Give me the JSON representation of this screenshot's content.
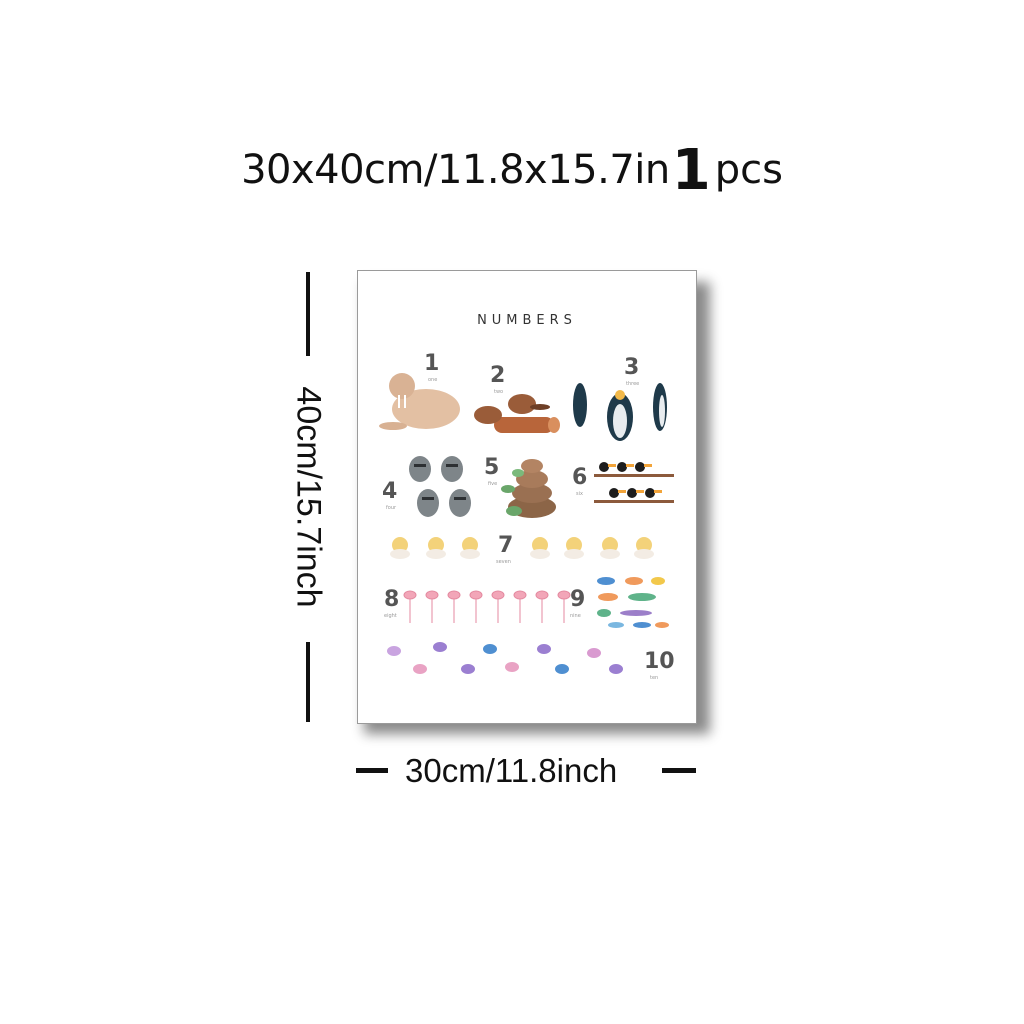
{
  "headline": {
    "size": "30x40cm/11.8x15.7in",
    "quantity_number": "1",
    "quantity_unit": "pcs"
  },
  "dimensions": {
    "height_label": "40cm/15.7inch",
    "width_label": "30cm/11.8inch"
  },
  "poster": {
    "title": "NUMBERS",
    "items": [
      {
        "numeral": "1",
        "word": "one",
        "animal": "walrus"
      },
      {
        "numeral": "2",
        "word": "two",
        "animal": "beaver"
      },
      {
        "numeral": "3",
        "word": "three",
        "animal": "penguin"
      },
      {
        "numeral": "4",
        "word": "four",
        "animal": "raccoon"
      },
      {
        "numeral": "5",
        "word": "five",
        "animal": "turtle"
      },
      {
        "numeral": "6",
        "word": "six",
        "animal": "toucan"
      },
      {
        "numeral": "7",
        "word": "seven",
        "animal": "chick"
      },
      {
        "numeral": "8",
        "word": "eight",
        "animal": "flamingo"
      },
      {
        "numeral": "9",
        "word": "nine",
        "animal": "fish"
      },
      {
        "numeral": "10",
        "word": "ten",
        "animal": "butterfly"
      }
    ]
  }
}
